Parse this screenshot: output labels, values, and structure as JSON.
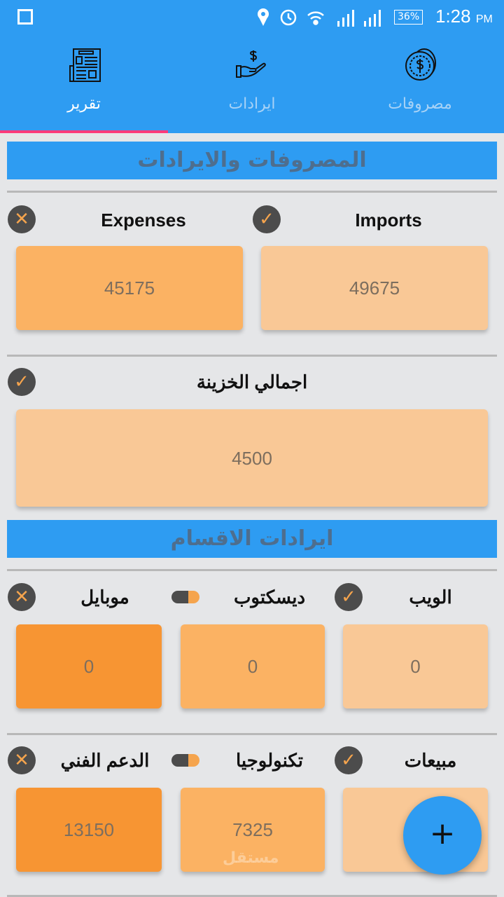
{
  "status_bar": {
    "battery": "36%",
    "time": "1:28",
    "ampm": "PM"
  },
  "tabs": [
    {
      "label": "تقرير",
      "icon": "newspaper-icon",
      "active": true
    },
    {
      "label": "ايرادات",
      "icon": "hand-dollar-icon"
    },
    {
      "label": "مصروفات",
      "icon": "coins-icon"
    }
  ],
  "section1": {
    "title": "المصروفات والايرادات",
    "expenses": {
      "label": "Expenses",
      "value": "45175",
      "status": "x"
    },
    "imports": {
      "label": "Imports",
      "value": "49675",
      "status": "check"
    },
    "treasury": {
      "label": "اجمالي الخزينة",
      "value": "4500",
      "status": "check"
    }
  },
  "section2": {
    "title": "ايرادات الاقسام",
    "row1": [
      {
        "label": "الويب",
        "value": "0",
        "status": "check"
      },
      {
        "label": "ديسكتوب",
        "value": "0",
        "status": "toggle"
      },
      {
        "label": "موبايل",
        "value": "0",
        "status": "x"
      }
    ],
    "row2": [
      {
        "label": "مبيعات",
        "value": "",
        "status": "check"
      },
      {
        "label": "تكنولوجيا",
        "value": "7325",
        "status": "toggle"
      },
      {
        "label": "الدعم الفني",
        "value": "13150",
        "status": "x"
      }
    ]
  },
  "fab": {
    "label": "+"
  },
  "watermark": "مستقل",
  "colors": {
    "primary": "#2e9cf2",
    "indicator": "#fd3b7b",
    "card_light": "#f9c896",
    "card_mid": "#fbb263",
    "card_dark": "#f79533"
  }
}
